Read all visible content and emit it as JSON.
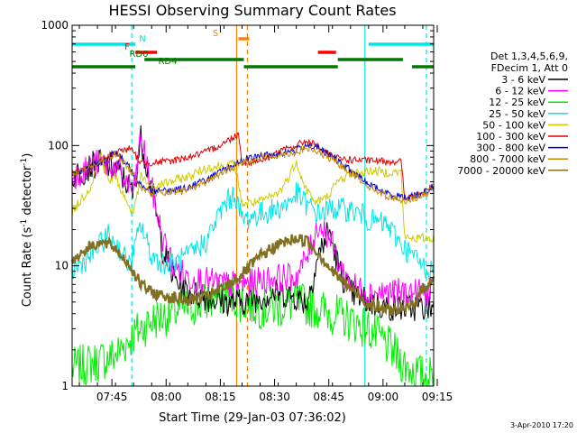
{
  "chart_data": {
    "type": "line",
    "title": "HESSI Observing Summary Count Rates",
    "xlabel": "Start Time (29-Jan-03 07:36:02)",
    "ylabel_main": "Count Rate (s",
    "ylabel_sup1": "-1",
    "ylabel_mid": " detector",
    "ylabel_sup2": "-1",
    "ylabel_end": ")",
    "yscale": "log",
    "ylim": [
      1,
      1000
    ],
    "xlim_min": [
      -2,
      98
    ],
    "y_ticks": [
      "1",
      "10",
      "100",
      "1000"
    ],
    "x_ticks": [
      {
        "m": 9,
        "label": "07:45"
      },
      {
        "m": 24,
        "label": "08:00"
      },
      {
        "m": 39,
        "label": "08:15"
      },
      {
        "m": 54,
        "label": "08:30"
      },
      {
        "m": 69,
        "label": "08:45"
      },
      {
        "m": 84,
        "label": "09:00"
      },
      {
        "m": 99,
        "label": "09:15"
      }
    ],
    "legend_header": [
      "Det 1,3,4,5,6,9,",
      "FDecim 1, Att 0"
    ],
    "footer_date": "3-Apr-2010 17:20",
    "flags": [
      {
        "label": "N",
        "color": "#00e5e5",
        "segments": [
          [
            -2,
            15.5
          ],
          [
            80,
            98
          ]
        ]
      },
      {
        "label": "F",
        "color": "#ff0000",
        "segments": [
          [
            15.5,
            21.5
          ],
          [
            66,
            71
          ]
        ]
      },
      {
        "label": "S",
        "color": "#ff8000",
        "segments": [
          [
            44,
            47
          ]
        ]
      },
      {
        "label": "RD0",
        "color": "#007700",
        "segments": [
          [
            18,
            45.5
          ],
          [
            71.5,
            89.5
          ]
        ]
      },
      {
        "label": "RD4",
        "color": "#007700",
        "segments": [
          [
            -2,
            15.5
          ],
          [
            45.5,
            71.5
          ],
          [
            92,
            98
          ]
        ]
      }
    ],
    "vlines": [
      {
        "m": 14.5,
        "color": "#00e5e5",
        "dash": true
      },
      {
        "m": 43.5,
        "color": "#ff8000",
        "dash": false
      },
      {
        "m": 46.5,
        "color": "#ff8000",
        "dash": true
      },
      {
        "m": 79,
        "color": "#00e5e5",
        "dash": false
      },
      {
        "m": 96,
        "color": "#00e5e5",
        "dash": true
      }
    ],
    "series": [
      {
        "name": "3 - 6 keV",
        "color": "#000000",
        "x": [
          -2,
          5,
          10,
          14,
          15,
          17,
          20,
          23,
          26,
          30,
          35,
          40,
          45,
          50,
          55,
          60,
          63,
          66,
          69,
          72,
          75,
          80,
          85,
          90,
          95,
          98
        ],
        "y": [
          55,
          72,
          65,
          45,
          40,
          115,
          45,
          14,
          8,
          6,
          5.5,
          5,
          5,
          5.5,
          6,
          5.5,
          5,
          12,
          20,
          9,
          6,
          5,
          4.5,
          4.5,
          4.5,
          4.5
        ]
      },
      {
        "name": "6 - 12 keV",
        "color": "#ff00ff",
        "x": [
          -2,
          5,
          10,
          14,
          15,
          17,
          20,
          23,
          26,
          30,
          35,
          40,
          45,
          50,
          55,
          60,
          63,
          66,
          69,
          72,
          75,
          80,
          85,
          90,
          95,
          98
        ],
        "y": [
          55,
          72,
          65,
          45,
          40,
          120,
          45,
          17,
          10,
          8,
          7.5,
          7,
          7,
          7.5,
          8,
          8,
          12,
          22,
          18,
          10,
          7,
          6,
          6,
          6,
          6,
          6
        ]
      },
      {
        "name": "12 - 25 keV",
        "color": "#00ee00",
        "x": [
          -2,
          5,
          10,
          14,
          17,
          20,
          25,
          30,
          35,
          40,
          45,
          50,
          55,
          60,
          65,
          70,
          75,
          80,
          85,
          90,
          95,
          98
        ],
        "y": [
          1.4,
          1.6,
          1.8,
          2.5,
          3,
          3.5,
          4,
          4.5,
          5,
          6,
          5,
          4.5,
          4.5,
          5,
          4.5,
          4,
          3.5,
          3,
          2.2,
          1.5,
          1.2,
          1.2
        ]
      },
      {
        "name": "25 - 50 keV",
        "color": "#00e5e5",
        "x": [
          -2,
          3,
          8,
          11,
          14,
          17,
          20,
          25,
          30,
          35,
          40,
          43,
          45,
          50,
          55,
          58,
          60,
          63,
          66,
          70,
          75,
          79,
          80,
          85,
          90,
          95,
          98
        ],
        "y": [
          9,
          12,
          18,
          14,
          10,
          22,
          12,
          10,
          12,
          16,
          32,
          40,
          24,
          27,
          30,
          34,
          40,
          32,
          27,
          30,
          29,
          26,
          24,
          22,
          14,
          10,
          9
        ]
      },
      {
        "name": "50 - 100 keV",
        "color": "#cccc00",
        "x": [
          -2,
          3,
          6,
          8,
          10,
          12,
          14,
          15,
          17,
          20,
          25,
          30,
          35,
          40,
          43,
          45,
          50,
          55,
          58,
          60,
          62,
          65,
          68,
          72,
          75,
          79,
          80,
          85,
          89,
          90,
          95,
          98
        ],
        "y": [
          28,
          45,
          85,
          50,
          55,
          40,
          30,
          28,
          55,
          45,
          50,
          55,
          65,
          68,
          70,
          33,
          34,
          40,
          55,
          75,
          48,
          34,
          36,
          52,
          58,
          60,
          62,
          60,
          60,
          17,
          17,
          17
        ]
      },
      {
        "name": "100 - 300 keV",
        "color": "#dd0000",
        "x": [
          -2,
          5,
          10,
          14,
          17,
          18,
          20,
          25,
          30,
          35,
          40,
          43,
          44,
          45,
          50,
          55,
          60,
          63,
          66,
          70,
          75,
          80,
          85,
          89,
          90,
          95,
          98
        ],
        "y": [
          58,
          70,
          88,
          95,
          72,
          72,
          72,
          74,
          80,
          88,
          105,
          120,
          125,
          72,
          75,
          88,
          100,
          110,
          98,
          80,
          76,
          75,
          74,
          74,
          36,
          40,
          47
        ]
      },
      {
        "name": "300 - 800 keV",
        "color": "#0000cc",
        "x": [
          -2,
          5,
          10,
          14,
          17,
          20,
          25,
          30,
          35,
          40,
          45,
          50,
          55,
          60,
          63,
          66,
          70,
          75,
          80,
          85,
          90,
          95,
          98
        ],
        "y": [
          58,
          70,
          88,
          65,
          48,
          42,
          42,
          45,
          52,
          62,
          75,
          82,
          85,
          92,
          102,
          95,
          80,
          62,
          48,
          40,
          37,
          40,
          46
        ]
      },
      {
        "name": "800 - 7000 keV",
        "color": "#cc8800",
        "x": [
          -2,
          5,
          10,
          14,
          17,
          20,
          25,
          30,
          35,
          40,
          45,
          50,
          55,
          60,
          63,
          66,
          70,
          75,
          80,
          85,
          90,
          95,
          98
        ],
        "y": [
          58,
          70,
          86,
          63,
          46,
          40,
          40,
          43,
          50,
          60,
          72,
          80,
          83,
          88,
          95,
          88,
          76,
          60,
          46,
          38,
          35,
          38,
          44
        ]
      },
      {
        "name": "7000 - 20000 keV",
        "color": "#807020",
        "x": [
          -2,
          2,
          5,
          8,
          10,
          14,
          17,
          20,
          25,
          30,
          35,
          40,
          45,
          50,
          55,
          60,
          63,
          66,
          70,
          75,
          80,
          85,
          90,
          93,
          95,
          98
        ],
        "y": [
          11,
          14,
          15.5,
          15,
          14,
          10,
          7,
          6,
          5.5,
          5.2,
          5.5,
          6.5,
          8.5,
          12,
          15,
          17,
          16,
          13,
          9,
          6.5,
          4.8,
          4.3,
          4.3,
          5,
          6.5,
          7.8
        ]
      }
    ]
  }
}
